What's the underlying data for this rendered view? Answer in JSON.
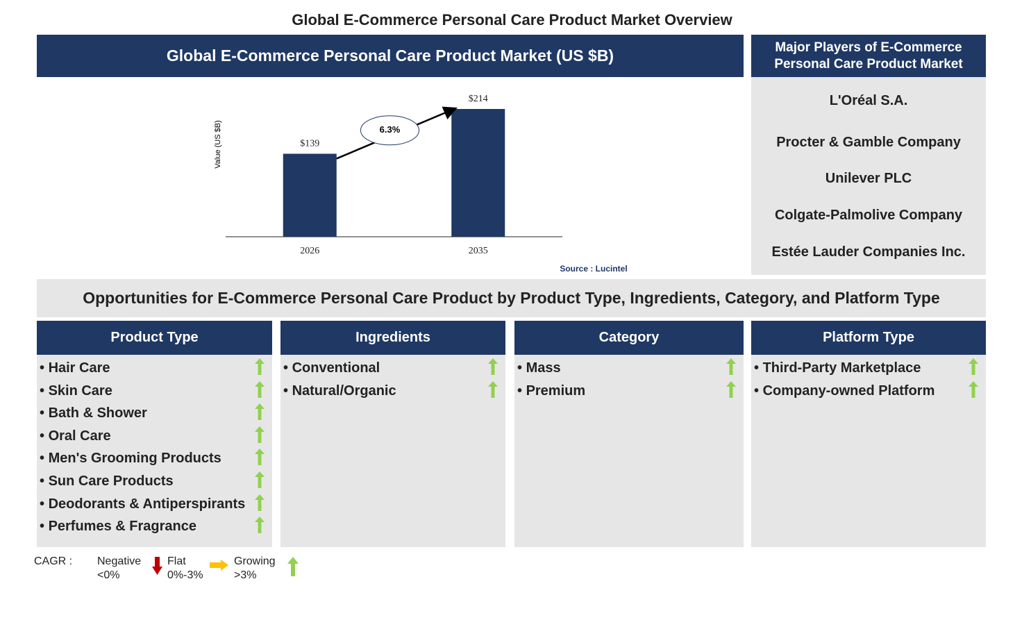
{
  "title": "Global E-Commerce Personal Care Product Market Overview",
  "chart_data": {
    "type": "bar",
    "title": "Global E-Commerce Personal Care Product Market (US $B)",
    "y_label": "Value (US $B)",
    "categories": [
      "2026",
      "2035"
    ],
    "values": [
      139,
      214
    ],
    "value_labels": [
      "$139",
      "$214"
    ],
    "color": "#1f3864",
    "ylim": [
      0,
      250
    ],
    "annotation": "6.3%",
    "source": "Source : Lucintel"
  },
  "players": {
    "title": "Major Players of E-Commerce Personal Care Product Market",
    "items": [
      "L'Oréal S.A.",
      "Procter & Gamble Company",
      "Unilever PLC",
      "Colgate-Palmolive Company",
      "Estée Lauder Companies Inc."
    ]
  },
  "opportunities": {
    "title": "Opportunities for E-Commerce Personal Care Product by Product Type, Ingredients, Category, and Platform Type",
    "columns": [
      {
        "header": "Product Type",
        "items": [
          "Hair Care",
          "Skin Care",
          "Bath & Shower",
          "Oral Care",
          "Men's Grooming Products",
          "Sun Care Products",
          "Deodorants & Antiperspirants",
          "Perfumes & Fragrance"
        ]
      },
      {
        "header": "Ingredients",
        "items": [
          "Conventional",
          "Natural/Organic"
        ]
      },
      {
        "header": "Category",
        "items": [
          "Mass",
          "Premium"
        ]
      },
      {
        "header": "Platform Type",
        "items": [
          "Third-Party Marketplace",
          "Company-owned Platform"
        ]
      }
    ]
  },
  "legend": {
    "label": "CAGR :",
    "items": [
      {
        "name": "Negative",
        "range": "<0%"
      },
      {
        "name": "Flat",
        "range": "0%-3%"
      },
      {
        "name": "Growing",
        "range": ">3%"
      }
    ]
  }
}
